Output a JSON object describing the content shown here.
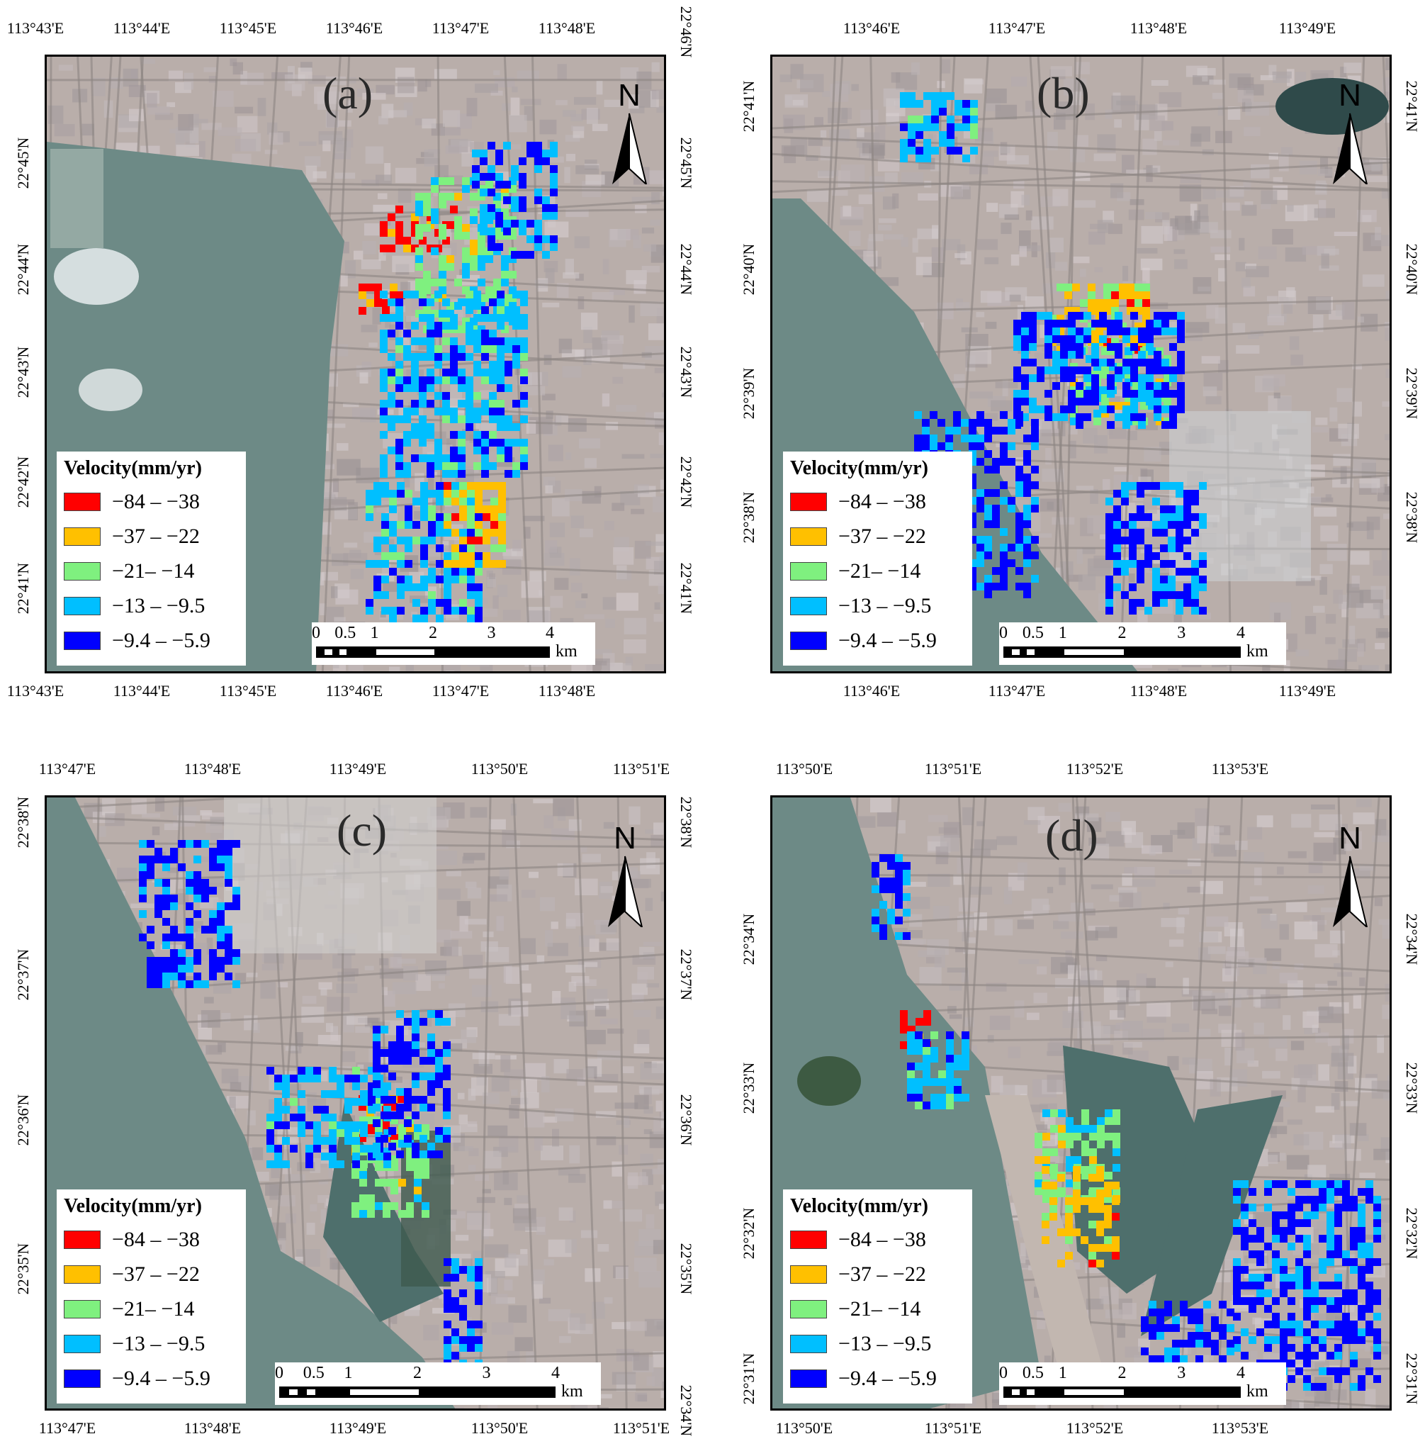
{
  "colors": {
    "class_1": "#ff0000",
    "class_2": "#ffc000",
    "class_3": "#7ff07f",
    "class_4": "#00bfff",
    "class_5": "#0000ff"
  },
  "legend": {
    "title": "Velocity(mm/yr)",
    "classes": [
      "−84 – −38",
      "−37 – −22",
      "−21– −14",
      "−13 – −9.5",
      "−9.4 – −5.9"
    ]
  },
  "scalebar": {
    "labels": [
      "0",
      "0.5",
      "1",
      "2",
      "3",
      "4"
    ],
    "unit": "km"
  },
  "north_arrow": {
    "label": "N",
    "icon": "north-arrow-icon"
  },
  "panels": [
    {
      "id": "a",
      "label": "(a)",
      "top_ticks": [
        "113°43'E",
        "113°44'E",
        "113°45'E",
        "113°46'E",
        "113°47'E",
        "113°48'E"
      ],
      "bottom_ticks": [
        "113°43'E",
        "113°44'E",
        "113°45'E",
        "113°46'E",
        "113°47'E",
        "113°48'E"
      ],
      "left_ticks": [
        "22°45'N",
        "22°44'N",
        "22°43'N",
        "22°42'N",
        "22°41'N"
      ],
      "right_ticks": [
        "22°46'N",
        "22°45'N",
        "22°44'N",
        "22°43'N",
        "22°42'N",
        "22°41'N"
      ]
    },
    {
      "id": "b",
      "label": "(b)",
      "top_ticks": [
        "113°46'E",
        "113°47'E",
        "113°48'E",
        "113°49'E"
      ],
      "bottom_ticks": [
        "113°46'E",
        "113°47'E",
        "113°48'E",
        "113°49'E"
      ],
      "left_ticks": [
        "22°41'N",
        "22°40'N",
        "22°39'N",
        "22°38'N"
      ],
      "right_ticks": [
        "22°41'N",
        "22°40'N",
        "22°39'N",
        "22°38'N"
      ]
    },
    {
      "id": "c",
      "label": "(c)",
      "top_ticks": [
        "113°47'E",
        "113°48'E",
        "113°49'E",
        "113°50'E",
        "113°51'E"
      ],
      "bottom_ticks": [
        "113°47'E",
        "113°48'E",
        "113°49'E",
        "113°50'E",
        "113°51'E"
      ],
      "left_ticks": [
        "22°38'N",
        "22°37'N",
        "22°36'N",
        "22°35'N"
      ],
      "right_ticks": [
        "22°38'N",
        "22°37'N",
        "22°36'N",
        "22°35'N",
        "22°34'N"
      ]
    },
    {
      "id": "d",
      "label": "(d)",
      "top_ticks": [
        "113°50'E",
        "113°51'E",
        "113°52'E",
        "113°53'E"
      ],
      "bottom_ticks": [
        "113°50'E",
        "113°51'E",
        "113°52'E",
        "113°53'E"
      ],
      "left_ticks": [
        "22°34'N",
        "22°33'N",
        "22°32'N",
        "22°31'N"
      ],
      "right_ticks": [
        "22°34'N",
        "22°33'N",
        "22°32'N",
        "22°31'N"
      ]
    }
  ]
}
